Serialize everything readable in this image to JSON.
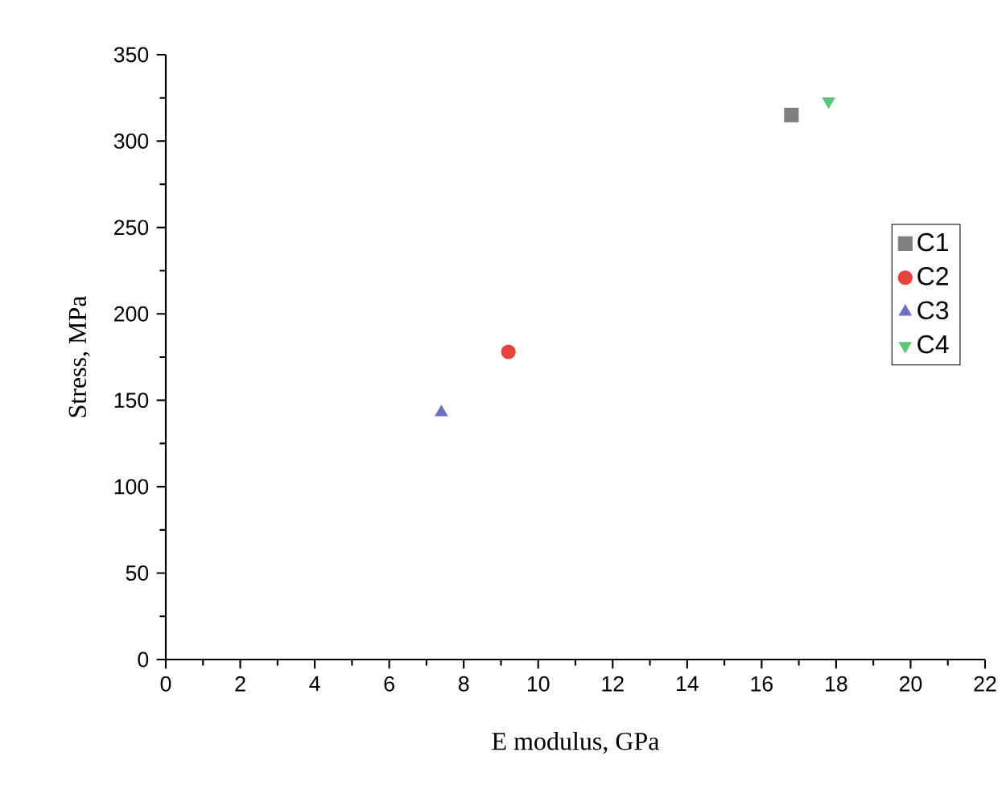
{
  "chart_data": {
    "type": "scatter",
    "xlabel": "E modulus, GPa",
    "ylabel": "Stress, MPa",
    "xlim": [
      0,
      22
    ],
    "xticks": [
      0,
      2,
      4,
      6,
      8,
      10,
      12,
      14,
      16,
      18,
      20,
      22
    ],
    "ylim": [
      0,
      350
    ],
    "yticks": [
      0,
      50,
      100,
      150,
      200,
      250,
      300,
      350
    ],
    "legend": "right",
    "grid": false,
    "series": [
      {
        "name": "C1",
        "color": "#7f7f7f",
        "marker": "square",
        "x": [
          16.8
        ],
        "values": [
          315
        ]
      },
      {
        "name": "C2",
        "color": "#e8433b",
        "marker": "circle",
        "x": [
          9.2
        ],
        "values": [
          178
        ]
      },
      {
        "name": "C3",
        "color": "#6b70c4",
        "marker": "triangle",
        "x": [
          7.4
        ],
        "values": [
          143
        ]
      },
      {
        "name": "C4",
        "color": "#5cc77a",
        "marker": "triangle-down",
        "x": [
          17.8
        ],
        "values": [
          323
        ]
      }
    ]
  }
}
